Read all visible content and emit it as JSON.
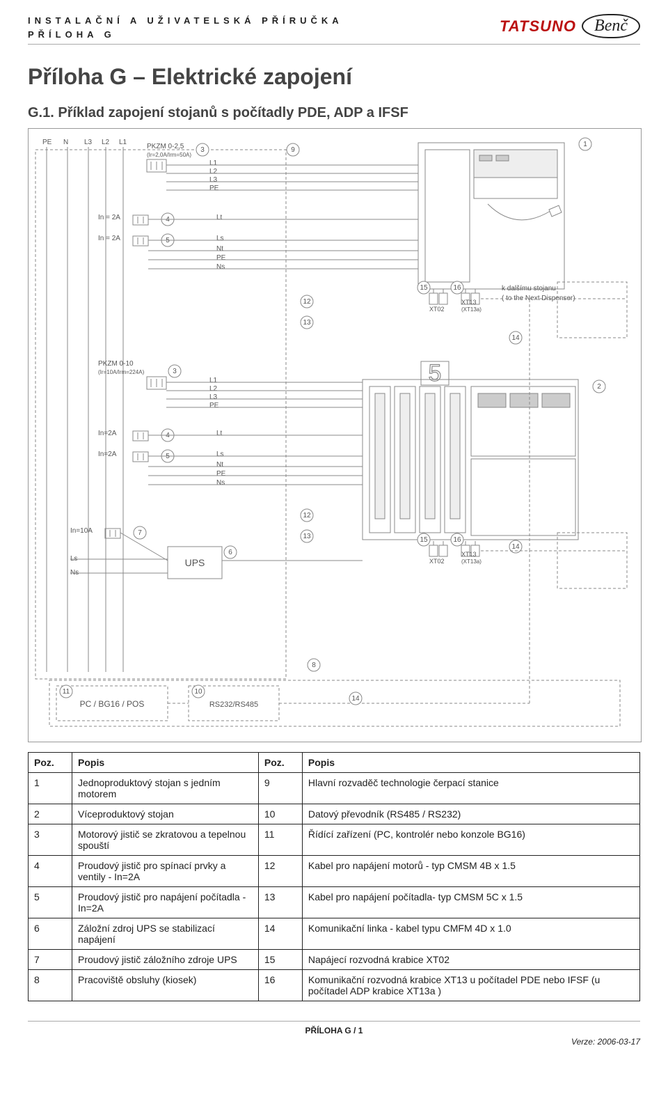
{
  "header": {
    "line1": "INSTALAČNÍ  A  UŽIVATELSKÁ  PŘÍRUČKA",
    "line2": "PŘÍLOHA  G",
    "brand1": "TATSUNO",
    "brand2": "Benč"
  },
  "titles": {
    "main": "Příloha G – Elektrické zapojení",
    "sub": "G.1. Příklad zapojení stojanů s počítadly PDE, ADP a IFSF"
  },
  "diagram": {
    "labels": {
      "pe": "PE",
      "n": "N",
      "l3": "L3",
      "l2": "L2",
      "l1": "L1",
      "pkzm_a": "PKZM 0-2,5",
      "pkzm_a_sub": "(Ir=2,0A/Irm=50A)",
      "pkzm_b": "PKZM 0-10",
      "pkzm_b_sub": "(Ir=10A/Irm=224A)",
      "in2a": "In = 2A",
      "in2a_short": "In=2A",
      "in10a": "In=10A",
      "l1s": "L1",
      "l2s": "L2",
      "l3s": "L3",
      "pes": "PE",
      "lt": "Lt",
      "ls": "Ls",
      "nt": "Nt",
      "ns": "Ns",
      "xt02": "XT02",
      "xt13": "XT13",
      "xt13a": "(XT13a)",
      "next_cz": "k dalšímu stojanu",
      "next_en": "( to the Next Dispenser)",
      "ups": "UPS",
      "pc": "PC / BG16 / POS",
      "rs": "RS232/RS485"
    },
    "callouts": [
      "1",
      "2",
      "3",
      "4",
      "5",
      "6",
      "7",
      "8",
      "9",
      "10",
      "11",
      "12",
      "13",
      "14",
      "15",
      "16"
    ],
    "big5": "5"
  },
  "table": {
    "head_pos": "Poz.",
    "head_desc": "Popis",
    "rows_left": [
      {
        "n": "1",
        "d": "Jednoproduktový stojan s jedním motorem"
      },
      {
        "n": "2",
        "d": "Víceproduktový stojan"
      },
      {
        "n": "3",
        "d": "Motorový jistič se zkratovou a tepelnou spouští"
      },
      {
        "n": "4",
        "d": "Proudový jistič pro spínací prvky a ventily - In=2A"
      },
      {
        "n": "5",
        "d": "Proudový jistič pro napájení počítadla - In=2A"
      },
      {
        "n": "6",
        "d": "Záložní zdroj UPS se stabilizací napájení"
      },
      {
        "n": "7",
        "d": "Proudový jistič záložního zdroje UPS"
      },
      {
        "n": "8",
        "d": "Pracoviště obsluhy (kiosek)"
      }
    ],
    "rows_right": [
      {
        "n": "9",
        "d": "Hlavní rozvaděč technologie čerpací stanice"
      },
      {
        "n": "10",
        "d": "Datový převodník (RS485 / RS232)"
      },
      {
        "n": "11",
        "d": "Řídící zařízení (PC, kontrolér nebo konzole BG16)"
      },
      {
        "n": "12",
        "d": "Kabel pro napájení motorů  - typ CMSM 4B x 1.5"
      },
      {
        "n": "13",
        "d": "Kabel pro napájení  počítadla- typ CMSM 5C x 1.5"
      },
      {
        "n": "14",
        "d": "Komunikační linka - kabel typu CMFM 4D x 1.0"
      },
      {
        "n": "15",
        "d": "Napájecí rozvodná krabice XT02"
      },
      {
        "n": "16",
        "d": "Komunikační rozvodná krabice XT13 u počítadel PDE nebo IFSF (u počítadel ADP  krabice XT13a )"
      }
    ]
  },
  "footer": {
    "center": "PŘÍLOHA G  / 1",
    "right": "Verze: 2006-03-17"
  },
  "style": {
    "stroke": "#888",
    "stroke_dark": "#555",
    "dashed": "4 3",
    "font": "10px Arial",
    "font_sm": "8px Arial"
  }
}
